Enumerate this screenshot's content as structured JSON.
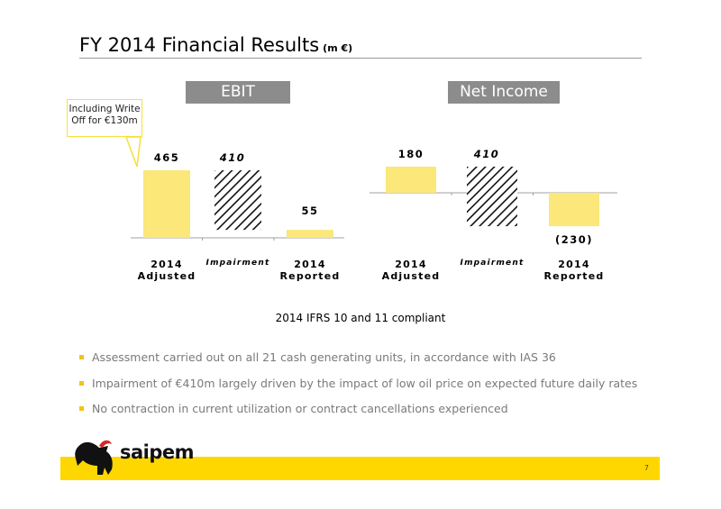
{
  "title": "FY 2014 Financial Results",
  "title_unit": "(m €)",
  "callout": "Including Write Off for €130m",
  "compliance_note": "2014 IFRS 10 and 11 compliant",
  "bullets": [
    "Assessment carried out on all 21 cash generating units, in accordance with IAS 36",
    "Impairment of €410m largely driven by the impact of low oil price on expected future daily rates",
    "No contraction in current utilization or contract cancellations experienced"
  ],
  "brand": "saipem",
  "page_number": "7",
  "colors": {
    "bar_fill": "#fbe77a",
    "header_bg": "#8c8c8c",
    "accent_yellow": "#ffd700",
    "bullet": "#f0c419"
  },
  "chart_data": [
    {
      "type": "bar",
      "title": "EBIT",
      "categories": [
        "2014 Adjusted",
        "Impairment",
        "2014 Reported"
      ],
      "values": [
        465,
        -410,
        55
      ],
      "value_labels": [
        "465",
        "410",
        "55"
      ],
      "hatched": [
        false,
        true,
        false
      ],
      "impairment_offset_top": 465
    },
    {
      "type": "bar",
      "title": "Net Income",
      "categories": [
        "2014 Adjusted",
        "Impairment",
        "2014 Reported"
      ],
      "values": [
        180,
        -410,
        -230
      ],
      "value_labels": [
        "180",
        "410",
        "(230)"
      ],
      "hatched": [
        false,
        true,
        false
      ],
      "impairment_offset_top": 180
    }
  ]
}
